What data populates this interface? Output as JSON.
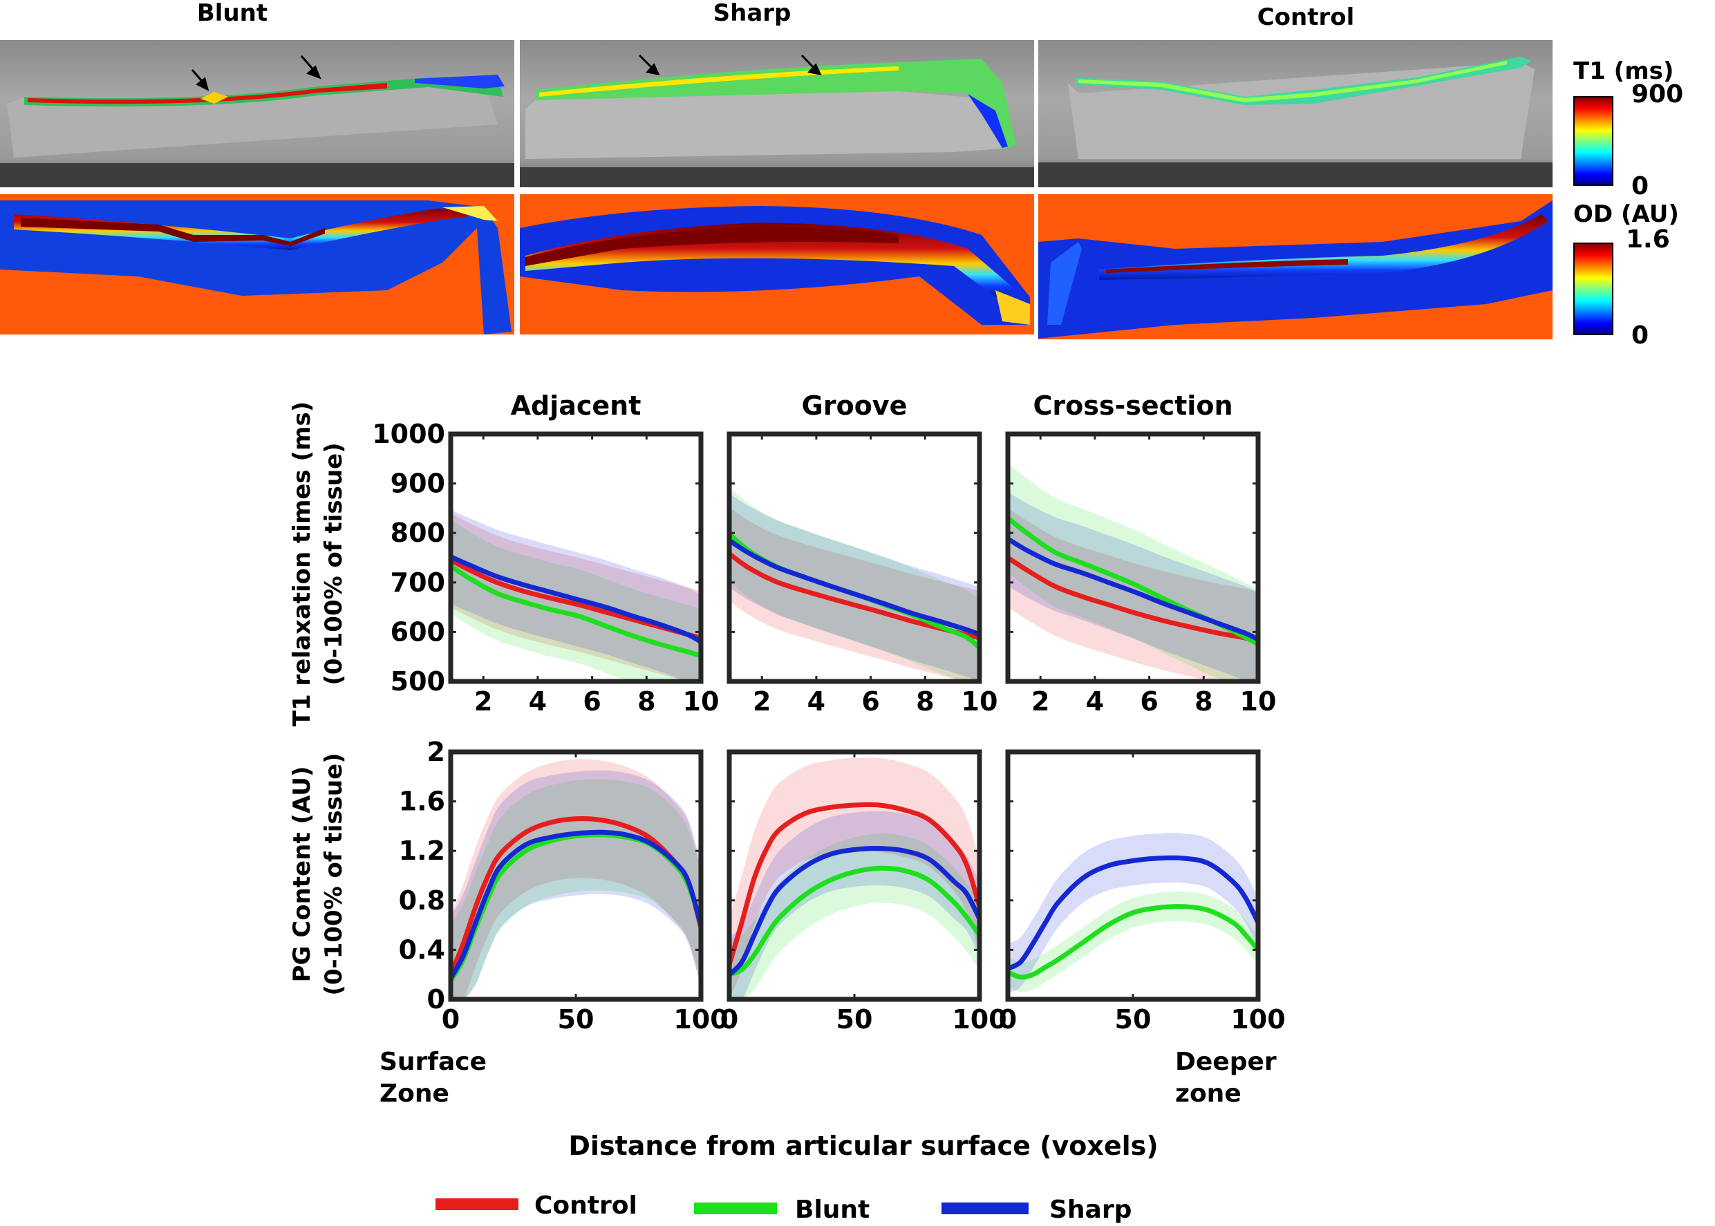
{
  "images": {
    "columns": [
      "Blunt",
      "Sharp",
      "Control"
    ],
    "t1_colorbar": {
      "label": "T1 (ms)",
      "max": "900",
      "min": "0"
    },
    "od_colorbar": {
      "label": "OD (AU)",
      "max": "1.6",
      "min": "0"
    }
  },
  "chart_data": [
    {
      "type": "line",
      "row": "T1",
      "title": "Adjacent",
      "ylabel_line1": "T1 relaxation times (ms)",
      "ylabel_line2": "(0-100% of tissue)",
      "xlim": [
        0.8,
        10
      ],
      "ylim": [
        500,
        1000
      ],
      "xticks": [
        2,
        4,
        6,
        8,
        10
      ],
      "yticks": [
        500,
        600,
        700,
        800,
        900,
        1000
      ],
      "x": [
        0.8,
        1.5,
        2.5,
        3.5,
        4.5,
        5.5,
        6.5,
        7.5,
        8.5,
        9.5,
        10
      ],
      "series": [
        {
          "name": "Control",
          "color": "#e61e1e",
          "band": 95,
          "values": [
            745,
            725,
            700,
            682,
            668,
            655,
            640,
            625,
            610,
            595,
            588
          ]
        },
        {
          "name": "Blunt",
          "color": "#1ede1e",
          "band": 95,
          "values": [
            733,
            708,
            678,
            660,
            645,
            632,
            612,
            592,
            575,
            560,
            552
          ]
        },
        {
          "name": "Sharp",
          "color": "#1428d2",
          "band": 95,
          "values": [
            752,
            735,
            712,
            695,
            680,
            665,
            650,
            632,
            615,
            595,
            580
          ]
        }
      ]
    },
    {
      "type": "line",
      "row": "T1",
      "title": "Groove",
      "xlim": [
        0.8,
        10
      ],
      "ylim": [
        500,
        1000
      ],
      "xticks": [
        2,
        4,
        6,
        8,
        10
      ],
      "x": [
        0.8,
        1.5,
        2.5,
        3.5,
        4.5,
        5.5,
        6.5,
        7.5,
        8.5,
        9.5,
        10
      ],
      "series": [
        {
          "name": "Control",
          "color": "#e61e1e",
          "band": 95,
          "values": [
            758,
            730,
            702,
            684,
            668,
            653,
            638,
            622,
            608,
            595,
            588
          ]
        },
        {
          "name": "Blunt",
          "color": "#1ede1e",
          "band": 95,
          "values": [
            798,
            765,
            733,
            712,
            693,
            675,
            655,
            635,
            612,
            590,
            568
          ]
        },
        {
          "name": "Sharp",
          "color": "#1428d2",
          "band": 95,
          "values": [
            785,
            760,
            732,
            712,
            693,
            675,
            657,
            638,
            622,
            605,
            595
          ]
        }
      ]
    },
    {
      "type": "line",
      "row": "T1",
      "title": "Cross-section",
      "xlim": [
        0.8,
        10
      ],
      "ylim": [
        500,
        1000
      ],
      "xticks": [
        2,
        4,
        6,
        8,
        10
      ],
      "x": [
        0.8,
        1.5,
        2.5,
        3.5,
        4.5,
        5.5,
        6.5,
        7.5,
        8.5,
        9.5,
        10
      ],
      "series": [
        {
          "name": "Control",
          "color": "#e61e1e",
          "band": 100,
          "values": [
            750,
            725,
            693,
            672,
            655,
            638,
            623,
            610,
            598,
            588,
            580
          ]
        },
        {
          "name": "Blunt",
          "color": "#1ede1e",
          "band": 110,
          "values": [
            830,
            800,
            762,
            740,
            718,
            695,
            668,
            642,
            617,
            590,
            575
          ]
        },
        {
          "name": "Sharp",
          "color": "#1428d2",
          "band": 95,
          "values": [
            788,
            765,
            738,
            720,
            700,
            680,
            658,
            638,
            618,
            598,
            585
          ]
        }
      ]
    },
    {
      "type": "line",
      "row": "PG",
      "ylabel_line1": "PG Content (AU)",
      "ylabel_line2": "(0-100% of tissue)",
      "xlim": [
        0,
        100
      ],
      "ylim": [
        0,
        2
      ],
      "xticks": [
        0,
        50,
        100
      ],
      "yticks": [
        0,
        0.4,
        0.8,
        1.2,
        1.6,
        2
      ],
      "x": [
        0,
        5,
        10,
        15,
        20,
        30,
        40,
        50,
        60,
        70,
        80,
        90,
        95,
        100
      ],
      "series": [
        {
          "name": "Control",
          "color": "#e61e1e",
          "band": 0.48,
          "values": [
            0.2,
            0.45,
            0.75,
            1.0,
            1.18,
            1.35,
            1.43,
            1.46,
            1.45,
            1.4,
            1.3,
            1.1,
            0.95,
            0.58
          ]
        },
        {
          "name": "Blunt",
          "color": "#1ede1e",
          "band": 0.45,
          "values": [
            0.15,
            0.32,
            0.58,
            0.82,
            1.02,
            1.2,
            1.28,
            1.32,
            1.33,
            1.31,
            1.25,
            1.08,
            0.92,
            0.62
          ]
        },
        {
          "name": "Sharp",
          "color": "#1428d2",
          "band": 0.5,
          "values": [
            0.17,
            0.35,
            0.62,
            0.88,
            1.08,
            1.25,
            1.31,
            1.34,
            1.35,
            1.33,
            1.26,
            1.1,
            0.95,
            0.6
          ]
        }
      ]
    },
    {
      "type": "line",
      "row": "PG",
      "xlim": [
        0,
        100
      ],
      "ylim": [
        0,
        2
      ],
      "xticks": [
        0,
        50,
        100
      ],
      "x": [
        0,
        5,
        10,
        15,
        20,
        30,
        40,
        50,
        60,
        70,
        80,
        90,
        95,
        100
      ],
      "series": [
        {
          "name": "Control",
          "color": "#e61e1e",
          "band": 0.38,
          "values": [
            0.28,
            0.62,
            0.98,
            1.22,
            1.37,
            1.5,
            1.55,
            1.57,
            1.57,
            1.53,
            1.45,
            1.25,
            1.08,
            0.75
          ]
        },
        {
          "name": "Blunt",
          "color": "#1ede1e",
          "band": 0.28,
          "values": [
            0.2,
            0.24,
            0.36,
            0.52,
            0.66,
            0.84,
            0.96,
            1.03,
            1.06,
            1.04,
            0.96,
            0.78,
            0.66,
            0.52
          ]
        },
        {
          "name": "Sharp",
          "color": "#1428d2",
          "band": 0.3,
          "values": [
            0.2,
            0.3,
            0.52,
            0.74,
            0.9,
            1.07,
            1.17,
            1.21,
            1.22,
            1.2,
            1.13,
            0.95,
            0.85,
            0.65
          ]
        }
      ]
    },
    {
      "type": "line",
      "row": "PG",
      "xlim": [
        0,
        100
      ],
      "ylim": [
        0,
        2
      ],
      "xticks": [
        0,
        50,
        100
      ],
      "x": [
        0,
        5,
        10,
        15,
        20,
        30,
        40,
        50,
        60,
        70,
        80,
        90,
        95,
        100
      ],
      "series": [
        {
          "name": "Blunt",
          "color": "#1ede1e",
          "band": 0.12,
          "values": [
            0.22,
            0.18,
            0.2,
            0.26,
            0.32,
            0.46,
            0.6,
            0.7,
            0.74,
            0.75,
            0.72,
            0.62,
            0.52,
            0.4
          ]
        },
        {
          "name": "Sharp",
          "color": "#1428d2",
          "band": 0.2,
          "values": [
            0.25,
            0.3,
            0.45,
            0.62,
            0.78,
            0.98,
            1.08,
            1.12,
            1.14,
            1.14,
            1.1,
            0.95,
            0.82,
            0.62
          ]
        }
      ]
    }
  ],
  "labels": {
    "surface_line1": "Surface",
    "surface_line2": "Zone",
    "deeper_line1": "Deeper",
    "deeper_line2": "zone",
    "xlabel": "Distance from articular surface (voxels)"
  },
  "legend": [
    {
      "name": "Control",
      "color": "#e61e1e"
    },
    {
      "name": "Blunt",
      "color": "#1ede1e"
    },
    {
      "name": "Sharp",
      "color": "#1428d2"
    }
  ]
}
